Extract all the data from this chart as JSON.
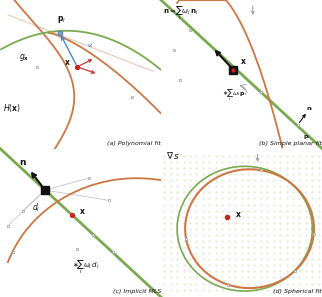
{
  "bg_color": "#f0f0e4",
  "bg_color_d": "#e8edd8",
  "orange_curve": "#cc7744",
  "green_curve": "#7aaa50",
  "red_point": "#cc2222",
  "black_point": "#111111",
  "gray_point": "#999999",
  "blue_arrow": "#4488cc",
  "red_arrow": "#cc3333",
  "grid_color": "#c0c8a0",
  "panel_a_title": "(a) Polynomial fit",
  "panel_b_title": "(b) Simple planar fit",
  "panel_c_title": "(c) Implicit MLS",
  "panel_d_title": "(d) Spherical fit",
  "fig_width": 3.22,
  "fig_height": 2.97
}
